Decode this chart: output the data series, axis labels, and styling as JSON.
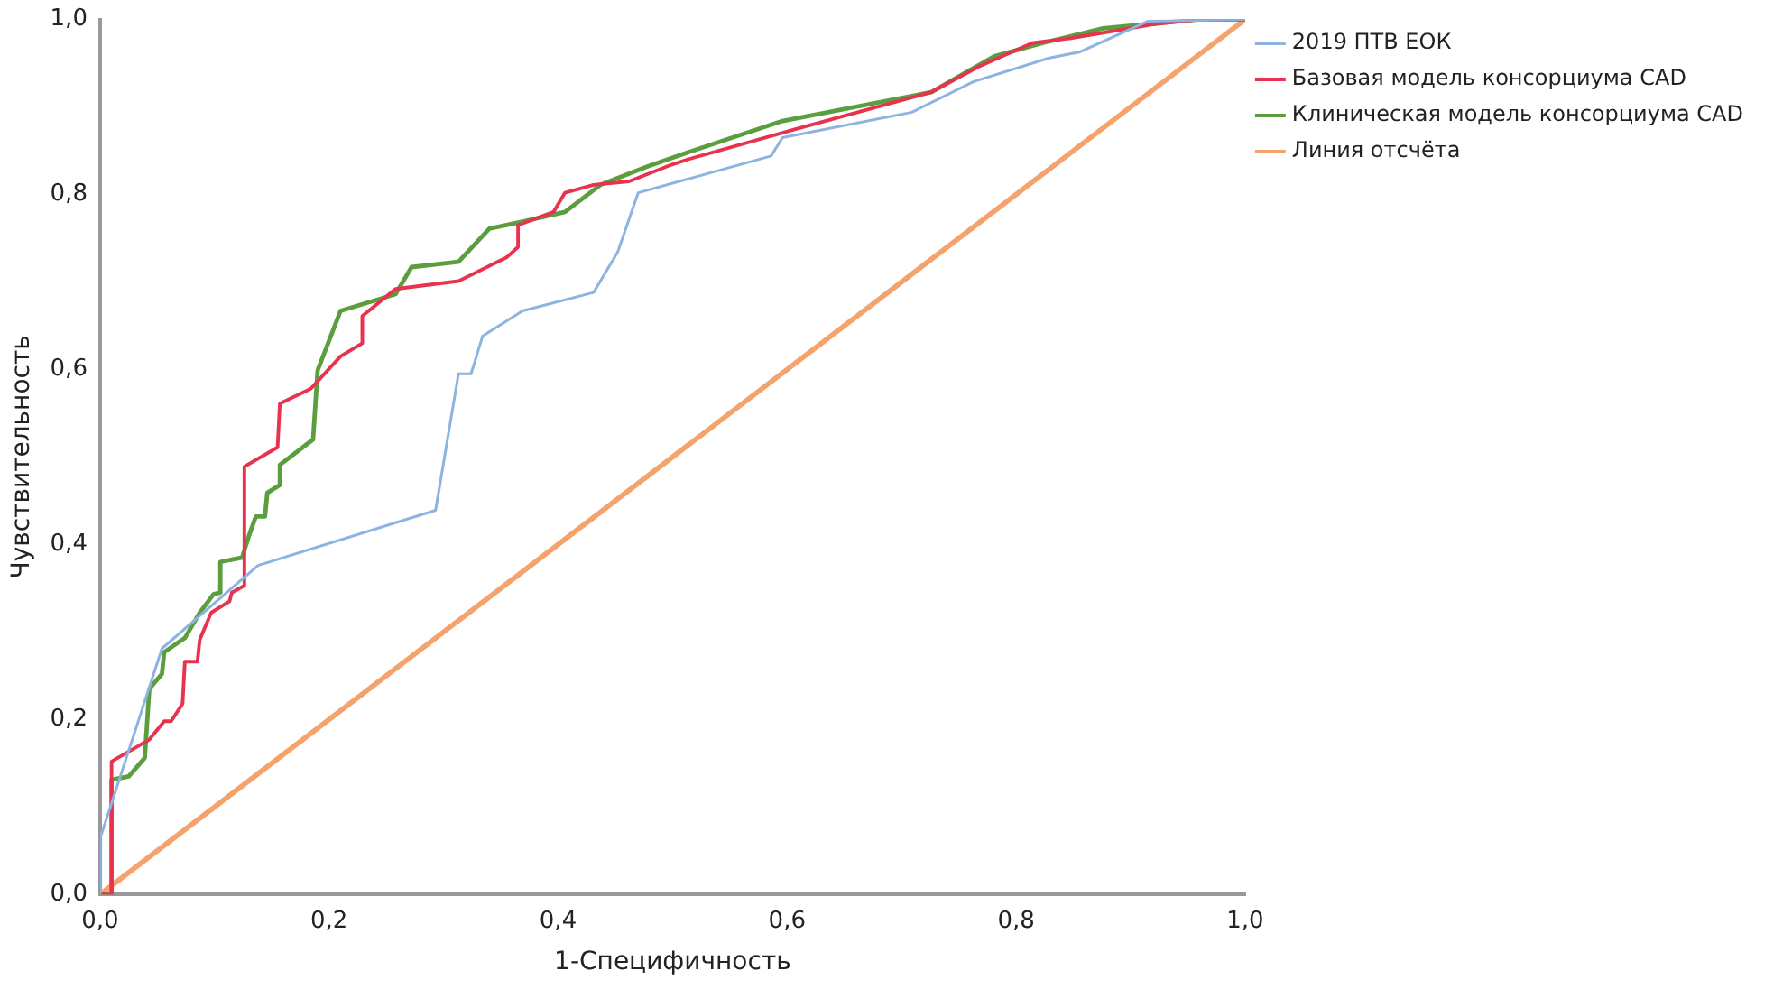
{
  "chart_data": {
    "type": "line",
    "xlabel": "1-Специфичность",
    "ylabel": "Чувствительность",
    "xlim": [
      0,
      1
    ],
    "ylim": [
      0,
      1
    ],
    "xticks": [
      {
        "value": 0,
        "label": "0,0"
      },
      {
        "value": 0.2,
        "label": "0,2"
      },
      {
        "value": 0.4,
        "label": "0,4"
      },
      {
        "value": 0.6,
        "label": "0,6"
      },
      {
        "value": 0.8,
        "label": "0,8"
      },
      {
        "value": 1,
        "label": "1,0"
      }
    ],
    "yticks": [
      {
        "value": 0,
        "label": "0,0"
      },
      {
        "value": 0.2,
        "label": "0,2"
      },
      {
        "value": 0.4,
        "label": "0,4"
      },
      {
        "value": 0.6,
        "label": "0,6"
      },
      {
        "value": 0.8,
        "label": "0,8"
      },
      {
        "value": 1,
        "label": "1,0"
      }
    ],
    "grid": false,
    "legend": "right",
    "marker": "none",
    "line_style": "solid",
    "series": [
      {
        "name": "2019 ПТВ ЕОК",
        "color": "#8db3e2",
        "x": [
          0,
          0,
          0.054,
          0.138,
          0.293,
          0.313,
          0.324,
          0.334,
          0.369,
          0.431,
          0.452,
          0.47,
          0.586,
          0.596,
          0.709,
          0.763,
          0.829,
          0.856,
          0.915,
          1
        ],
        "values": [
          0,
          0.064,
          0.281,
          0.376,
          0.439,
          0.595,
          0.595,
          0.638,
          0.667,
          0.688,
          0.734,
          0.802,
          0.844,
          0.865,
          0.894,
          0.929,
          0.956,
          0.963,
          0.998,
          1
        ]
      },
      {
        "name": "Базовая модель консорциума CAD",
        "color": "#e8334f",
        "x": [
          0,
          0.01,
          0.01,
          0.043,
          0.056,
          0.062,
          0.072,
          0.074,
          0.085,
          0.087,
          0.097,
          0.113,
          0.115,
          0.126,
          0.126,
          0.155,
          0.157,
          0.184,
          0.21,
          0.229,
          0.229,
          0.258,
          0.313,
          0.355,
          0.365,
          0.365,
          0.396,
          0.406,
          0.431,
          0.462,
          0.499,
          0.513,
          0.608,
          0.726,
          0.767,
          0.814,
          0.849,
          0.918,
          0.959,
          1
        ],
        "values": [
          0,
          0,
          0.152,
          0.177,
          0.198,
          0.198,
          0.218,
          0.266,
          0.266,
          0.291,
          0.322,
          0.335,
          0.345,
          0.353,
          0.489,
          0.511,
          0.561,
          0.578,
          0.615,
          0.63,
          0.661,
          0.692,
          0.701,
          0.728,
          0.74,
          0.765,
          0.78,
          0.802,
          0.811,
          0.815,
          0.834,
          0.84,
          0.875,
          0.917,
          0.946,
          0.973,
          0.979,
          0.994,
          1,
          1
        ]
      },
      {
        "name": "Клиническая модель консорциума CAD",
        "color": "#5a9e3e",
        "x": [
          0,
          0.01,
          0.01,
          0.025,
          0.039,
          0.043,
          0.054,
          0.056,
          0.074,
          0.087,
          0.099,
          0.105,
          0.105,
          0.124,
          0.13,
          0.136,
          0.144,
          0.146,
          0.157,
          0.157,
          0.186,
          0.19,
          0.21,
          0.258,
          0.272,
          0.313,
          0.34,
          0.369,
          0.406,
          0.437,
          0.478,
          0.513,
          0.596,
          0.726,
          0.781,
          0.823,
          0.876,
          0.959,
          1
        ],
        "values": [
          0,
          0,
          0.131,
          0.135,
          0.156,
          0.235,
          0.252,
          0.277,
          0.293,
          0.322,
          0.343,
          0.345,
          0.38,
          0.385,
          0.41,
          0.432,
          0.432,
          0.459,
          0.468,
          0.491,
          0.52,
          0.599,
          0.667,
          0.686,
          0.717,
          0.723,
          0.761,
          0.769,
          0.78,
          0.811,
          0.832,
          0.848,
          0.884,
          0.917,
          0.958,
          0.973,
          0.99,
          1,
          1
        ]
      },
      {
        "name": "Линия отсчёта",
        "color": "#f5a36d",
        "x": [
          0,
          1
        ],
        "values": [
          0,
          1
        ]
      }
    ]
  }
}
